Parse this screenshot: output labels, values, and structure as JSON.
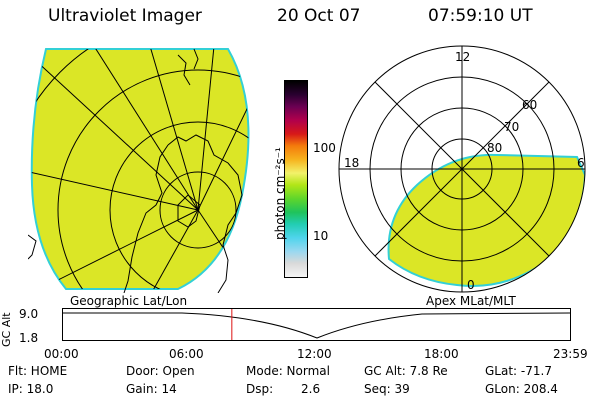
{
  "header": {
    "instrument": "Ultraviolet Imager",
    "date": "20 Oct 07",
    "time": "07:59:10 UT"
  },
  "colorbar": {
    "unit_label": "photon cm⁻²s⁻¹",
    "tick_labels": [
      "100",
      "10"
    ],
    "colors": [
      "#f5f5f5",
      "#d9d9d9",
      "#9ad8f0",
      "#4fd4ec",
      "#22cdb2",
      "#1fc35c",
      "#5fd62b",
      "#b2e617",
      "#f2f26a",
      "#f6b21d",
      "#f47a0c",
      "#d71818",
      "#b1004c",
      "#6a0052",
      "#2a0030",
      "#000000"
    ]
  },
  "panels": {
    "geographic_label": "Geographic Lat/Lon",
    "apex_label": "Apex MLat/MLT",
    "polar_hour_labels": {
      "top": "12",
      "left": "18",
      "right": "6",
      "bottom": "0"
    },
    "polar_lat_labels": [
      "60",
      "70",
      "80"
    ],
    "emission_color": "#dbe626",
    "edge_color": "#33d0d6"
  },
  "altitude_strip": {
    "axis_label": "GC Alt",
    "y_ticks": [
      "9.0",
      "1.8"
    ],
    "x_ticks": [
      "00:00",
      "06:00",
      "12:00",
      "18:00",
      "23:59"
    ],
    "current_time_fraction": 0.333,
    "marker_color": "#dd1111"
  },
  "status": {
    "row1": {
      "flt": "Flt: HOME",
      "door": "Door: Open",
      "mode": "Mode: Normal",
      "gc_alt": "GC Alt: 7.8 Re",
      "glat": "GLat: -71.7"
    },
    "row2": {
      "ip": "IP: 18.0",
      "gain": "Gain: 14",
      "dsp_label": "Dsp:",
      "dsp_value": "2.6",
      "seq": "Seq: 39",
      "glon": "GLon: 208.4"
    }
  }
}
